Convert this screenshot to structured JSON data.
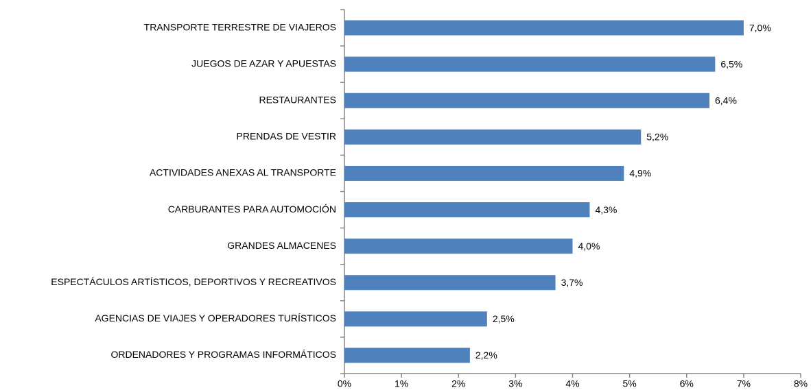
{
  "chart_data": {
    "type": "bar",
    "orientation": "horizontal",
    "categories": [
      "TRANSPORTE TERRESTRE DE VIAJEROS",
      "JUEGOS DE AZAR Y APUESTAS",
      "RESTAURANTES",
      "PRENDAS DE VESTIR",
      "ACTIVIDADES ANEXAS AL TRANSPORTE",
      "CARBURANTES PARA AUTOMOCIÓN",
      "GRANDES ALMACENES",
      "ESPECTÁCULOS ARTÍSTICOS, DEPORTIVOS Y RECREATIVOS",
      "AGENCIAS DE VIAJES Y OPERADORES TURÍSTICOS",
      "ORDENADORES Y PROGRAMAS INFORMÁTICOS"
    ],
    "values": [
      7.0,
      6.5,
      6.4,
      5.2,
      4.9,
      4.3,
      4.0,
      3.7,
      2.5,
      2.2
    ],
    "value_labels": [
      "7,0%",
      "6,5%",
      "6,4%",
      "5,2%",
      "4,9%",
      "4,3%",
      "4,0%",
      "3,7%",
      "2,5%",
      "2,2%"
    ],
    "color": "#4f81bd",
    "xlim": [
      0,
      8
    ],
    "xticks": [
      {
        "value": 0,
        "label": "0%"
      },
      {
        "value": 1,
        "label": "1%"
      },
      {
        "value": 2,
        "label": "2%"
      },
      {
        "value": 3,
        "label": "3%"
      },
      {
        "value": 4,
        "label": "4%"
      },
      {
        "value": 5,
        "label": "5%"
      },
      {
        "value": 6,
        "label": "6%"
      },
      {
        "value": 7,
        "label": "7%"
      },
      {
        "value": 8,
        "label": "8%"
      }
    ],
    "grid": false
  }
}
